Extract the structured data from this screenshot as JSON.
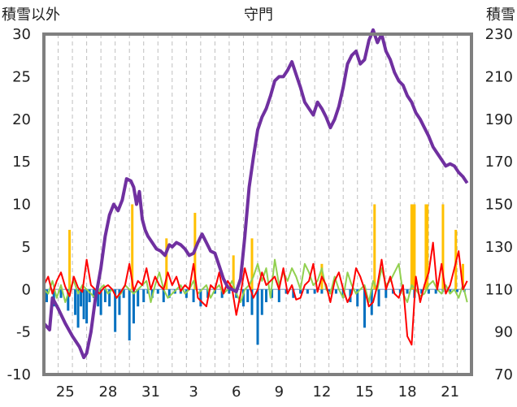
{
  "chart_data": {
    "type": "line",
    "title": "守門",
    "left_axis_label": "積雪以外",
    "right_axis_label": "積雪",
    "y_left_range": [
      -10,
      30
    ],
    "y_right_range": [
      70,
      230
    ],
    "y_left_ticks": [
      "30",
      "25",
      "20",
      "15",
      "10",
      "5",
      "0",
      "-5",
      "-10"
    ],
    "y_right_ticks": [
      "230",
      "210",
      "190",
      "170",
      "150",
      "130",
      "110",
      "90",
      "70"
    ],
    "x_ticks": [
      "25",
      "28",
      "31",
      "3",
      "6",
      "9",
      "12",
      "15",
      "18",
      "21"
    ],
    "x_range": [
      0,
      30
    ],
    "x_tick_positions": [
      1.5,
      4.5,
      7.5,
      10.5,
      13.5,
      16.5,
      19.5,
      22.5,
      25.5,
      28.5
    ],
    "grid": "vertical dashed",
    "colors": {
      "snow_depth": "#7030a0",
      "temperature_red": "#ff0000",
      "temperature_green": "#92d050",
      "snowfall_bars": "#0070c0",
      "precip_bars": "#ffc000",
      "frame": "#7f7f7f"
    },
    "series": [
      {
        "key": "snow_depth",
        "axis": "right",
        "x": [
          0,
          0.4,
          0.6,
          1.0,
          1.5,
          2.0,
          2.5,
          2.8,
          3.0,
          3.3,
          3.6,
          4.0,
          4.3,
          4.6,
          4.9,
          5.2,
          5.5,
          5.8,
          6.1,
          6.3,
          6.5,
          6.7,
          6.9,
          7.1,
          7.3,
          7.6,
          7.9,
          8.2,
          8.5,
          8.8,
          9.0,
          9.3,
          9.6,
          9.9,
          10.2,
          10.5,
          10.8,
          11.1,
          11.4,
          11.7,
          12.0,
          12.3,
          12.6,
          12.9,
          13.2,
          13.5,
          13.8,
          14.1,
          14.4,
          14.7,
          15.0,
          15.3,
          15.6,
          15.9,
          16.2,
          16.5,
          16.8,
          17.1,
          17.4,
          17.7,
          18.0,
          18.3,
          18.6,
          18.9,
          19.2,
          19.5,
          19.8,
          20.1,
          20.4,
          20.7,
          21.0,
          21.3,
          21.6,
          21.9,
          22.2,
          22.5,
          22.8,
          23.1,
          23.4,
          23.7,
          24.0,
          24.3,
          24.6,
          24.9,
          25.2,
          25.5,
          25.8,
          26.1,
          26.4,
          26.7,
          27.0,
          27.3,
          27.6,
          27.9,
          28.2,
          28.5,
          28.8,
          29.1,
          29.4,
          29.7
        ],
        "values": [
          94,
          91,
          106,
          101,
          94,
          88,
          83,
          78,
          80,
          90,
          105,
          120,
          135,
          145,
          150,
          147,
          152,
          162,
          161,
          158,
          150,
          156,
          143,
          138,
          135,
          132,
          129,
          128,
          126,
          131,
          130,
          132,
          131,
          129,
          126,
          127,
          132,
          136,
          132,
          128,
          127,
          121,
          115,
          111,
          110,
          109,
          115,
          135,
          158,
          172,
          185,
          191,
          195,
          201,
          208,
          210,
          210,
          213,
          217,
          211,
          205,
          198,
          195,
          192,
          198,
          195,
          191,
          186,
          190,
          196,
          205,
          216,
          220,
          222,
          216,
          218,
          227,
          232,
          226,
          230,
          222,
          218,
          212,
          208,
          206,
          201,
          198,
          193,
          190,
          186,
          182,
          177,
          174,
          171,
          168,
          169,
          168,
          165,
          163,
          160
        ]
      },
      {
        "key": "temperature_red",
        "axis": "left",
        "x": [
          0,
          0.3,
          0.6,
          0.9,
          1.2,
          1.5,
          1.8,
          2.1,
          2.4,
          2.7,
          3.0,
          3.3,
          3.6,
          3.9,
          4.2,
          4.5,
          4.8,
          5.1,
          5.4,
          5.7,
          6.0,
          6.3,
          6.6,
          6.9,
          7.2,
          7.5,
          7.8,
          8.1,
          8.4,
          8.7,
          9.0,
          9.3,
          9.6,
          9.9,
          10.2,
          10.5,
          10.8,
          11.1,
          11.4,
          11.7,
          12.0,
          12.3,
          12.6,
          12.9,
          13.2,
          13.5,
          13.8,
          14.1,
          14.4,
          14.7,
          15.0,
          15.3,
          15.6,
          15.9,
          16.2,
          16.5,
          16.8,
          17.1,
          17.4,
          17.7,
          18.0,
          18.3,
          18.6,
          18.9,
          19.2,
          19.5,
          19.8,
          20.1,
          20.4,
          20.7,
          21.0,
          21.3,
          21.6,
          21.9,
          22.2,
          22.5,
          22.8,
          23.1,
          23.4,
          23.7,
          24.0,
          24.3,
          24.6,
          24.9,
          25.2,
          25.5,
          25.8,
          26.1,
          26.4,
          26.7,
          27.0,
          27.3,
          27.6,
          27.9,
          28.2,
          28.5,
          28.8,
          29.1,
          29.4,
          29.7
        ],
        "values": [
          0.5,
          1.5,
          -0.5,
          1.0,
          2.0,
          0.3,
          -0.8,
          1.5,
          0.2,
          -0.3,
          3.5,
          0.5,
          0.0,
          -0.5,
          0.2,
          0.5,
          0.0,
          -1.0,
          -0.3,
          0.5,
          3.0,
          -0.2,
          1.0,
          0.5,
          2.5,
          0.0,
          1.5,
          0.5,
          0.0,
          2.0,
          0.5,
          1.5,
          -0.2,
          0.5,
          0.0,
          3.0,
          -1.0,
          -1.5,
          -2.0,
          0.5,
          0.0,
          2.0,
          -0.5,
          1.0,
          0.2,
          -3.0,
          -0.5,
          2.5,
          0.5,
          -1.0,
          0.0,
          2.0,
          0.5,
          1.0,
          1.5,
          0.0,
          2.5,
          -0.5,
          0.5,
          -1.2,
          -1.0,
          0.5,
          1.0,
          3.0,
          -0.3,
          1.5,
          0.5,
          -1.5,
          1.0,
          2.0,
          0.0,
          -1.5,
          -0.5,
          2.5,
          1.5,
          0.0,
          -2.0,
          -1.5,
          0.5,
          3.5,
          0.0,
          1.5,
          -0.5,
          -1.0,
          0.5,
          -5.5,
          -6.5,
          1.5,
          -1.5,
          0.5,
          2.0,
          5.5,
          0.0,
          3.0,
          -0.5,
          0.5,
          2.5,
          4.5,
          0.0,
          1.0
        ]
      },
      {
        "key": "temperature_green",
        "axis": "left",
        "x": [
          0,
          0.3,
          0.6,
          0.9,
          1.2,
          1.5,
          1.8,
          2.1,
          2.4,
          2.7,
          3.0,
          3.3,
          3.6,
          3.9,
          4.2,
          4.5,
          4.8,
          5.1,
          5.4,
          5.7,
          6.0,
          6.3,
          6.6,
          6.9,
          7.2,
          7.5,
          7.8,
          8.1,
          8.4,
          8.7,
          9.0,
          9.3,
          9.6,
          9.9,
          10.2,
          10.5,
          10.8,
          11.1,
          11.4,
          11.7,
          12.0,
          12.3,
          12.6,
          12.9,
          13.2,
          13.5,
          13.8,
          14.1,
          14.4,
          14.7,
          15.0,
          15.3,
          15.6,
          15.9,
          16.2,
          16.5,
          16.8,
          17.1,
          17.4,
          17.7,
          18.0,
          18.3,
          18.6,
          18.9,
          19.2,
          19.5,
          19.8,
          20.1,
          20.4,
          20.7,
          21.0,
          21.3,
          21.6,
          21.9,
          22.2,
          22.5,
          22.8,
          23.1,
          23.4,
          23.7,
          24.0,
          24.3,
          24.6,
          24.9,
          25.2,
          25.5,
          25.8,
          26.1,
          26.4,
          26.7,
          27.0,
          27.3,
          27.6,
          27.9,
          28.2,
          28.5,
          28.8,
          29.1,
          29.4,
          29.7
        ],
        "values": [
          0.0,
          -0.5,
          1.0,
          -1.0,
          0.5,
          -1.5,
          0.0,
          1.0,
          -0.5,
          0.5,
          0.0,
          -0.5,
          -1.0,
          0.0,
          0.5,
          -0.5,
          0.0,
          -1.0,
          -0.5,
          0.5,
          0.0,
          -0.5,
          0.0,
          0.5,
          1.0,
          -1.5,
          0.5,
          2.0,
          0.0,
          -1.0,
          -0.5,
          0.0,
          0.5,
          -0.5,
          0.0,
          1.0,
          -0.5,
          0.0,
          0.5,
          -1.0,
          0.0,
          0.5,
          -0.5,
          0.0,
          1.0,
          -0.5,
          -1.5,
          0.0,
          0.5,
          1.5,
          3.0,
          1.0,
          2.5,
          -1.0,
          3.5,
          0.5,
          2.0,
          1.0,
          2.5,
          1.5,
          0.0,
          3.0,
          2.0,
          0.5,
          1.0,
          2.5,
          0.0,
          -0.5,
          1.5,
          0.0,
          -1.0,
          2.0,
          0.5,
          -0.5,
          0.0,
          0.5,
          -1.5,
          1.0,
          0.0,
          2.5,
          0.5,
          1.0,
          2.0,
          3.0,
          -0.5,
          -1.5,
          0.5,
          0.0,
          -0.8,
          -0.5,
          0.5,
          1.0,
          0.0,
          -0.5,
          0.5,
          -0.5,
          0.0,
          -1.0,
          0.5,
          -1.5
        ]
      }
    ],
    "bars": [
      {
        "key": "snowfall_bars",
        "axis": "left",
        "x": [
          0.2,
          0.7,
          1.2,
          1.7,
          2.2,
          2.4,
          2.6,
          2.8,
          3.0,
          3.2,
          3.5,
          3.8,
          4.0,
          4.3,
          4.6,
          5.0,
          5.3,
          5.6,
          6.0,
          6.3,
          6.6,
          7.0,
          7.3,
          7.6,
          8.0,
          8.4,
          8.8,
          9.2,
          9.6,
          10.0,
          10.5,
          11.0,
          11.5,
          12.0,
          12.5,
          13.0,
          13.5,
          14.0,
          14.3,
          14.6,
          15.0,
          15.3,
          15.6,
          16.0,
          16.5,
          17.0,
          17.5,
          18.0,
          18.5,
          19.0,
          19.5,
          20.0,
          20.5,
          21.0,
          21.5,
          22.0,
          22.5,
          23.0,
          23.5,
          24.0,
          24.5,
          25.0,
          25.5,
          26.0,
          26.5,
          27.0,
          27.5,
          28.0,
          28.5,
          29.0,
          29.5
        ],
        "values": [
          -1.5,
          -2.0,
          -1.0,
          -2.5,
          -3.0,
          -4.5,
          -2.0,
          -3.5,
          -4.0,
          -1.5,
          -1.0,
          -2.0,
          -3.0,
          -1.5,
          -2.0,
          -5.0,
          -3.0,
          -1.0,
          -6.0,
          -4.0,
          -2.0,
          -1.5,
          -0.5,
          -1.0,
          -0.5,
          -1.5,
          -1.0,
          -0.5,
          -0.5,
          -1.0,
          -1.5,
          -2.0,
          -1.0,
          -0.5,
          -1.0,
          -0.5,
          -1.0,
          -2.0,
          -1.5,
          -3.0,
          -6.5,
          -3.0,
          -1.5,
          -1.0,
          -1.5,
          -0.5,
          -1.0,
          -0.5,
          -0.5,
          -0.5,
          -0.5,
          -0.3,
          -0.5,
          -1.0,
          -1.5,
          -2.0,
          -4.5,
          -3.0,
          -2.0,
          -1.0,
          -0.5,
          -0.5,
          -0.5,
          -1.0,
          -0.5,
          -0.5,
          -0.5,
          -0.3,
          -0.5,
          -0.3,
          -0.3
        ]
      },
      {
        "key": "precip_bars",
        "axis": "left",
        "x": [
          1.8,
          6.2,
          8.6,
          10.6,
          13.3,
          14.6,
          19.5,
          23.2,
          25.8,
          25.9,
          26.0,
          26.8,
          26.9,
          28.0,
          28.9,
          29.4
        ],
        "values": [
          7.0,
          10.0,
          6.0,
          9.0,
          4.0,
          6.0,
          3.0,
          10.0,
          10.0,
          10.0,
          10.0,
          10.0,
          10.0,
          10.0,
          7.0,
          3.0
        ]
      }
    ]
  }
}
